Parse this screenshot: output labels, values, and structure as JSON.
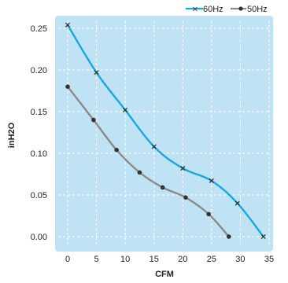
{
  "chart_data": {
    "type": "line",
    "title": "",
    "xlabel": "CFM",
    "ylabel": "inH2O",
    "xlim": [
      0,
      35
    ],
    "ylim": [
      0,
      0.25
    ],
    "xticks": [
      0,
      5,
      10,
      15,
      20,
      25,
      30,
      35
    ],
    "yticks": [
      0.0,
      0.05,
      0.1,
      0.15,
      0.2,
      0.25
    ],
    "xtick_labels": [
      "0",
      "5",
      "10",
      "15",
      "20",
      "25",
      "30",
      "35"
    ],
    "ytick_labels": [
      "0.00",
      "0.05",
      "0.10",
      "0.15",
      "0.20",
      "0.25"
    ],
    "grid": true,
    "legend_position": "top-right",
    "series": [
      {
        "name": "60Hz",
        "color": "#1aa7e0",
        "marker": "x",
        "x": [
          0,
          5,
          10,
          15,
          20,
          25,
          29.5,
          34
        ],
        "y": [
          0.254,
          0.197,
          0.152,
          0.108,
          0.082,
          0.067,
          0.04,
          0.0
        ]
      },
      {
        "name": "50Hz",
        "color": "#8a8a8a",
        "marker": "dot",
        "x": [
          0,
          4.5,
          8.5,
          12.5,
          16.5,
          20.5,
          24.5,
          28
        ],
        "y": [
          0.18,
          0.14,
          0.104,
          0.077,
          0.059,
          0.047,
          0.027,
          0.0
        ]
      }
    ]
  }
}
